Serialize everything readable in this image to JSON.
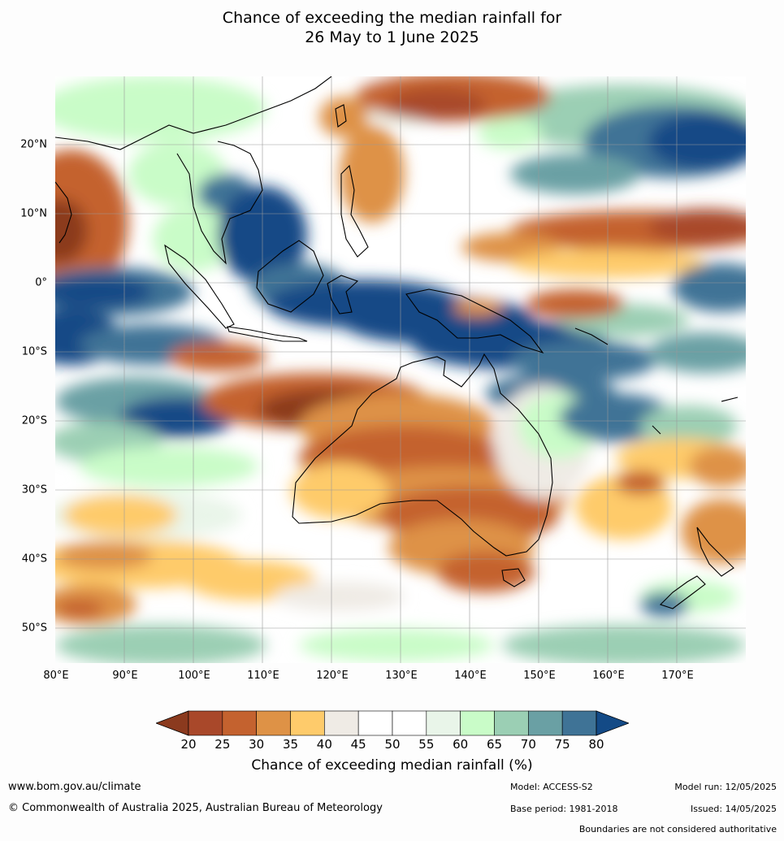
{
  "title_line1": "Chance of exceeding the median rainfall for",
  "title_line2": "26 May to 1 June 2025",
  "lat_labels": [
    "20°N",
    "10°N",
    "0°",
    "10°S",
    "20°S",
    "30°S",
    "40°S",
    "50°S"
  ],
  "lon_labels": [
    "80°E",
    "90°E",
    "100°E",
    "110°E",
    "120°E",
    "130°E",
    "140°E",
    "150°E",
    "160°E",
    "170°E"
  ],
  "colorbar": {
    "ticks": [
      "20",
      "25",
      "30",
      "35",
      "40",
      "45",
      "50",
      "55",
      "60",
      "65",
      "70",
      "75",
      "80"
    ],
    "colors": [
      "#8b3a1e",
      "#a9482a",
      "#c4622f",
      "#de9246",
      "#fecb6b",
      "#efebe5",
      "#ffffff",
      "#ffffff",
      "#e9f5e9",
      "#c9fcc8",
      "#9bcfb4",
      "#6aa0a4",
      "#3f7396",
      "#134a86"
    ],
    "title": "Chance of exceeding median rainfall (%)"
  },
  "footer": {
    "url": "www.bom.gov.au/climate",
    "copyright": "© Commonwealth of Australia 2025, Australian Bureau of Meteorology",
    "model": "Model: ACCESS-S2",
    "base_period": "Base period: 1981-2018",
    "model_run": "Model run: 12/05/2025",
    "issued": "Issued: 14/05/2025",
    "disclaimer": "Boundaries are not considered authoritative"
  }
}
